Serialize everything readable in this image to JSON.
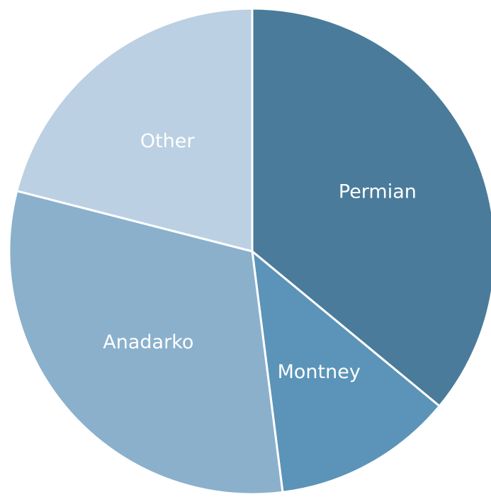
{
  "chart_data": {
    "type": "pie",
    "categories": [
      "Permian",
      "Montney",
      "Anadarko",
      "Other"
    ],
    "values": [
      36,
      12,
      31,
      21
    ],
    "colors": [
      "#4a7b9a",
      "#5b94b8",
      "#8ab0cc",
      "#bbd0e2"
    ],
    "start_angle": 0,
    "direction": "clockwise"
  }
}
